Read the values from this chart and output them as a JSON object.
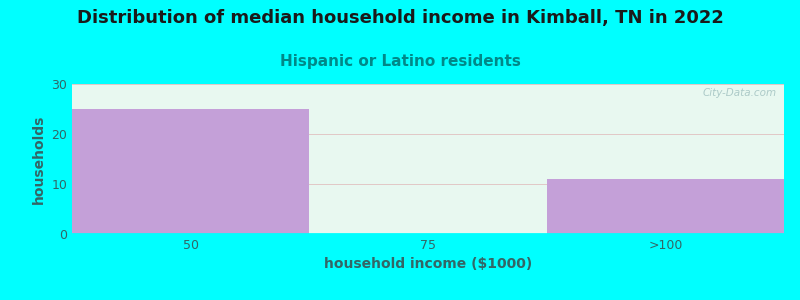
{
  "title": "Distribution of median household income in Kimball, TN in 2022",
  "subtitle": "Hispanic or Latino residents",
  "categories": [
    "50",
    "75",
    ">100"
  ],
  "values": [
    25,
    0,
    11
  ],
  "bar_colors": [
    "#c4a0d8",
    "#e4f5e4",
    "#c4a0d8"
  ],
  "xlabel": "household income ($1000)",
  "ylabel": "households",
  "ylim": [
    0,
    30
  ],
  "yticks": [
    0,
    10,
    20,
    30
  ],
  "background_color": "#00ffff",
  "plot_bg_top": "#e8f8f0",
  "plot_bg_bottom": "#f5fdf5",
  "title_fontsize": 13,
  "title_color": "#1a1a1a",
  "subtitle_fontsize": 11,
  "subtitle_color": "#008888",
  "tick_color": "#336666",
  "axis_label_fontsize": 10,
  "axis_label_color": "#336666",
  "watermark": "City-Data.com",
  "grid_color": "#e0c0c0",
  "bin_edges": [
    0.0,
    1.0,
    2.0,
    3.0
  ]
}
